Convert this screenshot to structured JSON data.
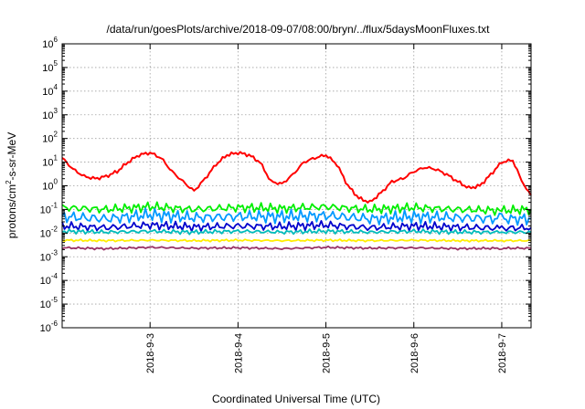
{
  "chart_data": {
    "type": "line",
    "title": "/data/run/goesPlots/archive/2018-09-07/08:00/bryn/../flux/5daysMoonFluxes.txt",
    "xlabel": "Coordinated Universal Time (UTC)",
    "ylabel": {
      "base": "protons/cm",
      "sup": "2",
      "rest": "-s-sr-MeV"
    },
    "yscale": "log",
    "ylim": [
      1e-06,
      1000000.0
    ],
    "y_ticks": [
      {
        "exp": "-6"
      },
      {
        "exp": "-5"
      },
      {
        "exp": "-4"
      },
      {
        "exp": "-3"
      },
      {
        "exp": "-2"
      },
      {
        "exp": "-1"
      },
      {
        "exp": "0"
      },
      {
        "exp": "1"
      },
      {
        "exp": "2"
      },
      {
        "exp": "3"
      },
      {
        "exp": "4"
      },
      {
        "exp": "5"
      },
      {
        "exp": "6"
      }
    ],
    "xlim": [
      "2018-09-02T00:00",
      "2018-09-07T08:00"
    ],
    "x_ticks": [
      "2018-9-3",
      "2018-9-4",
      "2018-9-5",
      "2018-9-6",
      "2018-9-7"
    ],
    "grid": true,
    "series": [
      {
        "color": "#ff0000",
        "x": [
          "2018-09-02T00:00",
          "2018-09-02T03:00",
          "2018-09-02T06:00",
          "2018-09-02T09:00",
          "2018-09-02T12:00",
          "2018-09-02T15:00",
          "2018-09-02T18:00",
          "2018-09-02T21:00",
          "2018-09-03T00:00",
          "2018-09-03T03:00",
          "2018-09-03T06:00",
          "2018-09-03T09:00",
          "2018-09-03T12:00",
          "2018-09-03T15:00",
          "2018-09-03T18:00",
          "2018-09-03T21:00",
          "2018-09-04T00:00",
          "2018-09-04T03:00",
          "2018-09-04T06:00",
          "2018-09-04T09:00",
          "2018-09-04T12:00",
          "2018-09-04T15:00",
          "2018-09-04T18:00",
          "2018-09-04T21:00",
          "2018-09-05T00:00",
          "2018-09-05T03:00",
          "2018-09-05T06:00",
          "2018-09-05T09:00",
          "2018-09-05T12:00",
          "2018-09-05T15:00",
          "2018-09-05T18:00",
          "2018-09-05T21:00",
          "2018-09-06T00:00",
          "2018-09-06T03:00",
          "2018-09-06T06:00",
          "2018-09-06T09:00",
          "2018-09-06T12:00",
          "2018-09-06T15:00",
          "2018-09-06T18:00",
          "2018-09-06T21:00",
          "2018-09-07T00:00",
          "2018-09-07T03:00",
          "2018-09-07T06:00",
          "2018-09-07T08:00"
        ],
        "values": [
          15,
          5,
          2.5,
          2,
          2.5,
          4,
          10,
          20,
          25,
          15,
          4,
          1.5,
          0.6,
          2,
          8,
          20,
          25,
          20,
          10,
          1.5,
          1.2,
          3,
          10,
          15,
          20,
          8,
          1,
          0.3,
          0.2,
          0.5,
          1.5,
          2,
          4,
          6,
          5,
          3,
          1.5,
          0.8,
          1,
          3,
          10,
          12,
          1,
          0.4
        ]
      },
      {
        "color": "#00ee00",
        "x": [
          "2018-09-02T00:00",
          "2018-09-02T12:00",
          "2018-09-03T00:00",
          "2018-09-03T12:00",
          "2018-09-04T00:00",
          "2018-09-04T12:00",
          "2018-09-05T00:00",
          "2018-09-05T12:00",
          "2018-09-06T00:00",
          "2018-09-06T12:00",
          "2018-09-07T00:00",
          "2018-09-07T08:00"
        ],
        "values": [
          0.12,
          0.1,
          0.13,
          0.1,
          0.12,
          0.11,
          0.13,
          0.1,
          0.12,
          0.1,
          0.09,
          0.1
        ]
      },
      {
        "color": "#0099ff",
        "x": [
          "2018-09-02T00:00",
          "2018-09-02T12:00",
          "2018-09-03T00:00",
          "2018-09-03T12:00",
          "2018-09-04T00:00",
          "2018-09-04T12:00",
          "2018-09-05T00:00",
          "2018-09-05T12:00",
          "2018-09-06T00:00",
          "2018-09-06T12:00",
          "2018-09-07T00:00",
          "2018-09-07T08:00"
        ],
        "values": [
          0.05,
          0.04,
          0.06,
          0.045,
          0.05,
          0.05,
          0.055,
          0.04,
          0.05,
          0.045,
          0.04,
          0.04
        ]
      },
      {
        "color": "#0000cc",
        "x": [
          "2018-09-02T00:00",
          "2018-09-02T12:00",
          "2018-09-03T00:00",
          "2018-09-03T12:00",
          "2018-09-04T00:00",
          "2018-09-04T12:00",
          "2018-09-05T00:00",
          "2018-09-05T12:00",
          "2018-09-06T00:00",
          "2018-09-06T12:00",
          "2018-09-07T00:00",
          "2018-09-07T08:00"
        ],
        "values": [
          0.02,
          0.017,
          0.022,
          0.018,
          0.02,
          0.019,
          0.022,
          0.017,
          0.02,
          0.018,
          0.016,
          0.017
        ]
      },
      {
        "color": "#00bbbb",
        "x": [
          "2018-09-02T00:00",
          "2018-09-02T12:00",
          "2018-09-03T00:00",
          "2018-09-03T12:00",
          "2018-09-04T00:00",
          "2018-09-04T12:00",
          "2018-09-05T00:00",
          "2018-09-05T12:00",
          "2018-09-06T00:00",
          "2018-09-06T12:00",
          "2018-09-07T00:00",
          "2018-09-07T08:00"
        ],
        "values": [
          0.012,
          0.011,
          0.012,
          0.011,
          0.012,
          0.011,
          0.012,
          0.011,
          0.012,
          0.011,
          0.011,
          0.011
        ]
      },
      {
        "color": "#ffee00",
        "x": [
          "2018-09-02T00:00",
          "2018-09-02T12:00",
          "2018-09-03T00:00",
          "2018-09-03T12:00",
          "2018-09-04T00:00",
          "2018-09-04T12:00",
          "2018-09-05T00:00",
          "2018-09-05T12:00",
          "2018-09-06T00:00",
          "2018-09-06T12:00",
          "2018-09-07T00:00",
          "2018-09-07T08:00"
        ],
        "values": [
          0.005,
          0.0048,
          0.005,
          0.0048,
          0.005,
          0.0048,
          0.005,
          0.0048,
          0.005,
          0.0048,
          0.0048,
          0.0048
        ]
      },
      {
        "color": "#993366",
        "x": [
          "2018-09-02T00:00",
          "2018-09-02T12:00",
          "2018-09-03T00:00",
          "2018-09-03T12:00",
          "2018-09-04T00:00",
          "2018-09-04T12:00",
          "2018-09-05T00:00",
          "2018-09-05T12:00",
          "2018-09-06T00:00",
          "2018-09-06T12:00",
          "2018-09-07T00:00",
          "2018-09-07T08:00"
        ],
        "values": [
          0.0024,
          0.0022,
          0.0025,
          0.0023,
          0.0024,
          0.0022,
          0.0025,
          0.0023,
          0.0024,
          0.0022,
          0.0023,
          0.0023
        ]
      }
    ]
  }
}
